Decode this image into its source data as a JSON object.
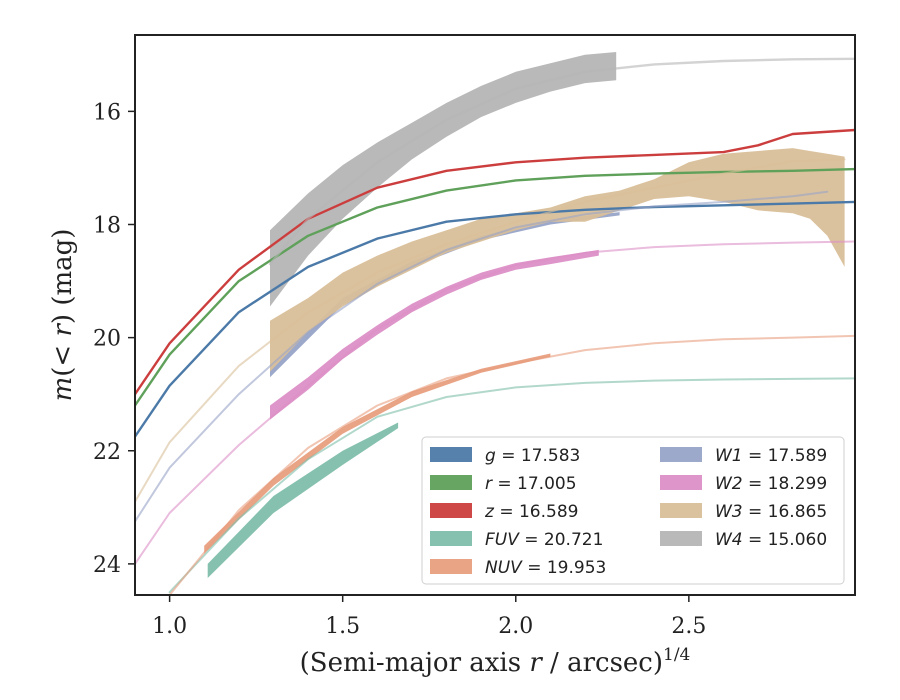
{
  "chart_data": {
    "type": "line",
    "xlabel": "(Semi-major axis r / arcsec)^1/4",
    "ylabel": "m(< r) (mag)",
    "xlim": [
      0.9,
      2.98
    ],
    "ylim": [
      24.55,
      14.65
    ],
    "y_inverted": true,
    "grid": false,
    "legend_position": "lower-right",
    "x_ticks": [
      "1.0",
      "1.5",
      "2.0",
      "2.5"
    ],
    "x_tick_values": [
      1.0,
      1.5,
      2.0,
      2.5
    ],
    "y_ticks": [
      "16",
      "18",
      "20",
      "22",
      "24"
    ],
    "y_tick_values": [
      16,
      18,
      20,
      22,
      24
    ],
    "series": [
      {
        "name": "g = 17.583",
        "label_var": "g",
        "label_val": "17.583",
        "color": "#4C7AA8",
        "x": [
          0.9,
          1.0,
          1.2,
          1.4,
          1.6,
          1.8,
          2.0,
          2.2,
          2.4,
          2.6,
          2.8,
          2.98
        ],
        "y": [
          21.75,
          20.85,
          19.55,
          18.75,
          18.25,
          17.95,
          17.82,
          17.74,
          17.69,
          17.66,
          17.63,
          17.6
        ],
        "band_x": [],
        "band_lower": [],
        "band_upper": []
      },
      {
        "name": "r = 17.005",
        "label_var": "r",
        "label_val": "17.005",
        "color": "#5FA15A",
        "x": [
          0.9,
          1.0,
          1.2,
          1.4,
          1.6,
          1.8,
          2.0,
          2.2,
          2.4,
          2.6,
          2.8,
          2.98
        ],
        "y": [
          21.2,
          20.3,
          19.0,
          18.2,
          17.7,
          17.4,
          17.22,
          17.14,
          17.1,
          17.07,
          17.05,
          17.02
        ],
        "band_x": [],
        "band_lower": [],
        "band_upper": []
      },
      {
        "name": "z = 16.589",
        "label_var": "z",
        "label_val": "16.589",
        "color": "#CC3E3E",
        "x": [
          0.9,
          1.0,
          1.2,
          1.4,
          1.6,
          1.8,
          2.0,
          2.2,
          2.4,
          2.6,
          2.7,
          2.8,
          2.98
        ],
        "y": [
          21.0,
          20.1,
          18.8,
          17.9,
          17.35,
          17.05,
          16.9,
          16.82,
          16.77,
          16.72,
          16.6,
          16.4,
          16.33
        ],
        "band_x": [],
        "band_lower": [],
        "band_upper": []
      },
      {
        "name": "FUV = 20.721",
        "label_var": "FUV",
        "label_val": "20.721",
        "color": "#7EBEAA",
        "x": [
          1.0,
          1.2,
          1.4,
          1.6,
          1.8,
          2.0,
          2.2,
          2.4,
          2.6,
          2.8,
          2.98
        ],
        "y": [
          24.5,
          23.2,
          22.15,
          21.4,
          21.05,
          20.88,
          20.8,
          20.76,
          20.74,
          20.73,
          20.72
        ],
        "band_x": [
          1.11,
          1.3,
          1.5,
          1.66
        ],
        "band_lower": [
          24.0,
          22.8,
          22.0,
          21.5
        ],
        "band_upper": [
          24.25,
          23.1,
          22.25,
          21.6
        ]
      },
      {
        "name": "NUV = 19.953",
        "label_var": "NUV",
        "label_val": "19.953",
        "color": "#E89E7E",
        "x": [
          1.0,
          1.2,
          1.4,
          1.6,
          1.8,
          2.0,
          2.2,
          2.4,
          2.6,
          2.8,
          2.98
        ],
        "y": [
          24.55,
          23.05,
          21.95,
          21.2,
          20.72,
          20.45,
          20.22,
          20.1,
          20.03,
          20.0,
          19.97
        ],
        "band_x": [
          1.1,
          1.3,
          1.5,
          1.7,
          1.9,
          2.1
        ],
        "band_lower": [
          23.68,
          22.48,
          21.58,
          20.95,
          20.55,
          20.28
        ],
        "band_upper": [
          23.82,
          22.62,
          21.7,
          21.05,
          20.62,
          20.34
        ]
      },
      {
        "name": "W1 = 17.589",
        "label_var": "W1",
        "label_val": "17.589",
        "color": "#98A4C8",
        "x": [
          0.9,
          1.0,
          1.2,
          1.4,
          1.6,
          1.8,
          2.0,
          2.2,
          2.4,
          2.6,
          2.8,
          2.9
        ],
        "y": [
          23.25,
          22.3,
          21.0,
          19.9,
          19.05,
          18.45,
          18.05,
          17.82,
          17.68,
          17.6,
          17.5,
          17.42
        ],
        "band_x": [
          1.29,
          1.5,
          1.7,
          1.9,
          2.1,
          2.3
        ],
        "band_lower": [
          20.55,
          19.3,
          18.65,
          18.2,
          17.92,
          17.78
        ],
        "band_upper": [
          20.7,
          19.42,
          18.75,
          18.28,
          18.0,
          17.84
        ]
      },
      {
        "name": "W2 = 18.299",
        "label_var": "W2",
        "label_val": "18.299",
        "color": "#DC8FC6",
        "x": [
          0.9,
          1.0,
          1.2,
          1.4,
          1.6,
          1.8,
          2.0,
          2.2,
          2.4,
          2.6,
          2.8,
          2.98
        ],
        "y": [
          24.0,
          23.1,
          21.9,
          20.85,
          19.85,
          19.15,
          18.72,
          18.5,
          18.4,
          18.35,
          18.32,
          18.3
        ],
        "band_x": [
          1.29,
          1.4,
          1.5,
          1.6,
          1.7,
          1.8,
          1.9,
          2.0,
          2.1,
          2.24
        ],
        "band_lower": [
          21.2,
          20.7,
          20.2,
          19.78,
          19.4,
          19.1,
          18.85,
          18.68,
          18.58,
          18.45
        ],
        "band_upper": [
          21.45,
          20.92,
          20.38,
          19.95,
          19.55,
          19.24,
          18.98,
          18.8,
          18.7,
          18.55
        ]
      },
      {
        "name": "W3 = 16.865",
        "label_var": "W3",
        "label_val": "16.865",
        "color": "#D9BF99",
        "x": [
          0.9,
          1.0,
          1.2,
          1.4,
          1.6,
          1.8,
          2.0,
          2.2,
          2.4,
          2.6,
          2.8,
          2.95
        ],
        "y": [
          22.9,
          21.85,
          20.5,
          19.55,
          18.85,
          18.35,
          17.95,
          17.6,
          17.35,
          17.1,
          16.88,
          16.85
        ],
        "band_x": [
          1.29,
          1.4,
          1.5,
          1.6,
          1.7,
          1.8,
          1.9,
          2.0,
          2.1,
          2.2,
          2.3,
          2.4,
          2.5,
          2.6,
          2.7,
          2.8,
          2.85,
          2.9,
          2.95
        ],
        "band_lower": [
          19.7,
          19.3,
          18.85,
          18.55,
          18.3,
          18.1,
          17.9,
          17.8,
          17.7,
          17.5,
          17.4,
          17.2,
          16.9,
          16.75,
          16.7,
          16.65,
          16.7,
          16.75,
          16.8
        ],
        "band_upper": [
          20.6,
          19.9,
          19.45,
          19.1,
          18.8,
          18.5,
          18.3,
          18.1,
          17.95,
          17.95,
          17.75,
          17.55,
          17.5,
          17.6,
          17.75,
          17.8,
          17.9,
          18.2,
          18.75
        ]
      },
      {
        "name": "W4 = 15.060",
        "label_var": "W4",
        "label_val": "15.060",
        "color": "#B5B5B5",
        "x": [
          1.29,
          1.4,
          1.6,
          1.8,
          2.0,
          2.2,
          2.4,
          2.6,
          2.8,
          2.98
        ],
        "y": [
          18.7,
          17.9,
          16.9,
          16.15,
          15.6,
          15.3,
          15.17,
          15.11,
          15.08,
          15.07
        ],
        "band_x": [
          1.29,
          1.4,
          1.5,
          1.6,
          1.7,
          1.8,
          1.9,
          2.0,
          2.1,
          2.2,
          2.29
        ],
        "band_lower": [
          18.1,
          17.45,
          16.95,
          16.55,
          16.2,
          15.85,
          15.55,
          15.3,
          15.15,
          15.0,
          14.95
        ],
        "band_upper": [
          19.45,
          18.55,
          17.9,
          17.35,
          16.85,
          16.45,
          16.1,
          15.85,
          15.65,
          15.5,
          15.45
        ]
      }
    ]
  }
}
